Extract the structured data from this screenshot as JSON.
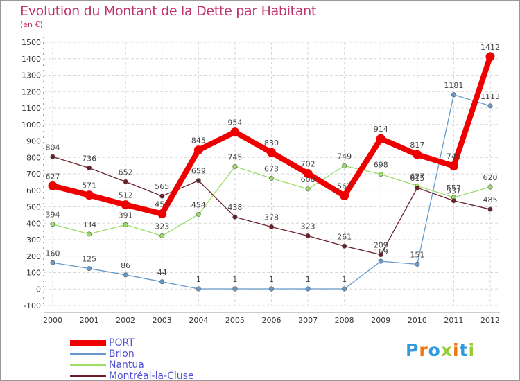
{
  "title": "Evolution du Montant de la Dette par Habitant",
  "subtitle": "(en €)",
  "logo": "Proxiti",
  "chart_data": {
    "type": "line",
    "x": [
      "2000",
      "2001",
      "2002",
      "2003",
      "2004",
      "2005",
      "2006",
      "2007",
      "2008",
      "2009",
      "2010",
      "2011",
      "2012"
    ],
    "ylim": [
      -100,
      1500
    ],
    "yticks": [
      -100,
      0,
      100,
      200,
      300,
      400,
      500,
      600,
      700,
      800,
      900,
      1000,
      1100,
      1200,
      1300,
      1400,
      1500
    ],
    "grid": true,
    "legend_position": "bottom-left",
    "series": [
      {
        "name": "PORT",
        "color": "#ee0000",
        "values": [
          627,
          571,
          512,
          458,
          845,
          954,
          830,
          702,
          567,
          914,
          817,
          748,
          1412
        ],
        "labels": [
          "627",
          "571",
          "512",
          "458",
          "845",
          "954",
          "830",
          "702",
          "567",
          "914",
          "817",
          "748",
          "1412"
        ]
      },
      {
        "name": "Brion",
        "color": "#6699cc",
        "values": [
          160,
          125,
          86,
          44,
          1,
          1,
          1,
          1,
          1,
          169,
          151,
          1181,
          1113
        ],
        "labels": [
          "160",
          "125",
          "86",
          "44",
          "1",
          "1",
          "1",
          "1",
          "1",
          "169",
          "151",
          "1181",
          "1113"
        ]
      },
      {
        "name": "Nantua",
        "color": "#99dd66",
        "values": [
          394,
          334,
          391,
          323,
          454,
          745,
          673,
          608,
          749,
          698,
          627,
          557,
          620
        ],
        "labels": [
          "394",
          "334",
          "391",
          "323",
          "454",
          "745",
          "673",
          "608",
          "749",
          "698",
          "627",
          "557",
          "620"
        ]
      },
      {
        "name": "Montréal-la-Cluse",
        "color": "#6b1f2a",
        "values": [
          804,
          736,
          652,
          565,
          659,
          438,
          378,
          323,
          261,
          209,
          615,
          537,
          485
        ],
        "labels": [
          "804",
          "736",
          "652",
          "565",
          "659",
          "438",
          "378",
          "323",
          "261",
          "209",
          "615",
          "537",
          "485"
        ]
      }
    ]
  }
}
